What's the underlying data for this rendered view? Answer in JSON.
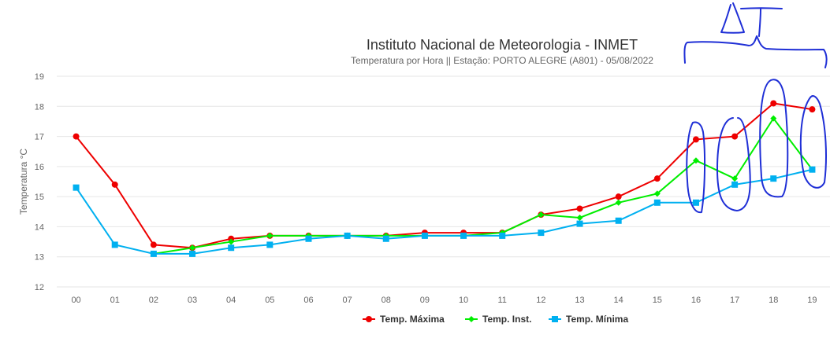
{
  "chart_data": {
    "type": "line",
    "title": "Instituto Nacional de Meteorologia - INMET",
    "subtitle": "Temperatura por Hora || Estação: PORTO ALEGRE (A801) - 05/08/2022",
    "xlabel": "",
    "ylabel": "Temperatura °C",
    "categories": [
      "00",
      "01",
      "02",
      "03",
      "04",
      "05",
      "06",
      "07",
      "08",
      "09",
      "10",
      "11",
      "12",
      "13",
      "14",
      "15",
      "16",
      "17",
      "18",
      "19"
    ],
    "ylim": [
      12,
      19
    ],
    "yticks": [
      12,
      13,
      14,
      15,
      16,
      17,
      18,
      19
    ],
    "grid": true,
    "legend_position": "bottom-center",
    "series": [
      {
        "name": "Temp. Máxima",
        "color": "#ee0000",
        "marker": "circle",
        "values": [
          17.0,
          15.4,
          13.4,
          13.3,
          13.6,
          13.7,
          13.7,
          13.7,
          13.7,
          13.8,
          13.8,
          13.8,
          14.4,
          14.6,
          15.0,
          15.6,
          16.9,
          17.0,
          18.1,
          17.9
        ]
      },
      {
        "name": "Temp. Inst.",
        "color": "#00ee00",
        "marker": "diamond",
        "values": [
          null,
          null,
          13.1,
          13.3,
          13.5,
          13.7,
          13.7,
          13.7,
          13.7,
          13.7,
          13.7,
          13.8,
          14.4,
          14.3,
          14.8,
          15.1,
          16.2,
          15.6,
          17.6,
          15.9
        ]
      },
      {
        "name": "Temp. Mínima",
        "color": "#00b0f0",
        "marker": "square",
        "values": [
          15.3,
          13.4,
          13.1,
          13.1,
          13.3,
          13.4,
          13.6,
          13.7,
          13.6,
          13.7,
          13.7,
          13.7,
          13.8,
          14.1,
          14.2,
          14.8,
          14.8,
          15.4,
          15.6,
          15.9
        ]
      }
    ]
  },
  "annotations": {
    "ink_color": "#1f2fd6",
    "description_tokens": [
      "ΔT"
    ]
  }
}
